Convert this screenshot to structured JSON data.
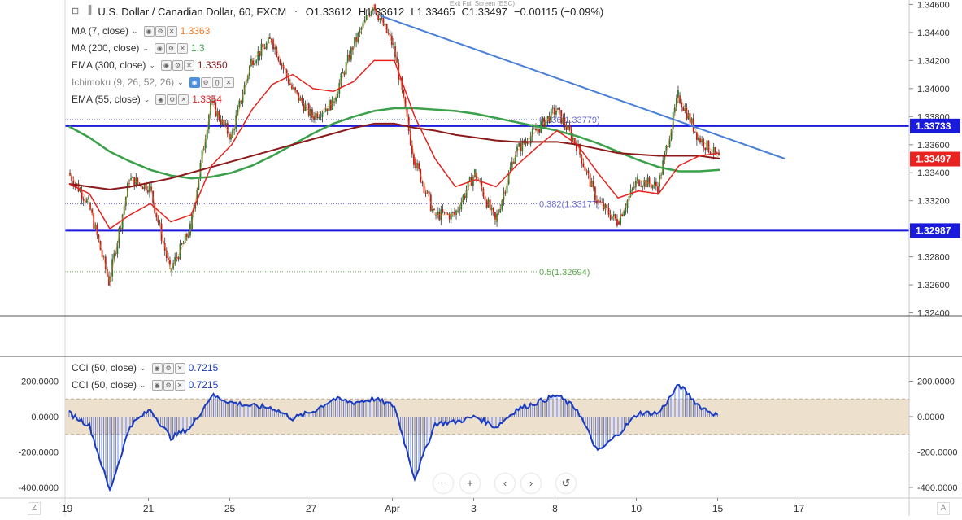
{
  "title": {
    "symbol": "U.S. Dollar / Canadian Dollar, 60, FXCM",
    "open": "O1.33612",
    "high": "H1.33612",
    "low": "L1.33465",
    "close": "C1.33497",
    "change": "−0.00115 (−0.09%)",
    "exit_fullscreen": "Exit Full Screen (ESC)"
  },
  "legends": [
    {
      "label": "MA (7, close)",
      "value": "1.3363",
      "color": "#f07b24"
    },
    {
      "label": "MA (200, close)",
      "value": "1.3",
      "color": "#3aa04a"
    },
    {
      "label": "EMA (300, close)",
      "value": "1.3350",
      "color": "#8b1a1a"
    },
    {
      "label": "Ichimoku (9, 26, 52, 26)",
      "value": "",
      "color": "#888888"
    },
    {
      "label": "EMA (55, close)",
      "value": "1.3354",
      "color": "#e8231f"
    }
  ],
  "cci_legends": [
    {
      "label": "CCI (50, close)",
      "value": "0.7215",
      "color": "#1a3cc0"
    },
    {
      "label": "CCI (50, close)",
      "value": "0.7215",
      "color": "#1a3cc0"
    }
  ],
  "price_axis": {
    "ticks": [
      "1.34600",
      "1.34400",
      "1.34200",
      "1.34000",
      "1.33800",
      "1.33600",
      "1.33400",
      "1.33200",
      "1.33000",
      "1.32800",
      "1.32600",
      "1.32400"
    ],
    "ymin": 1.3238,
    "ymax": 1.3462,
    "badges": [
      {
        "text": "1.33733",
        "value": 1.33733,
        "bg": "#1a1adb"
      },
      {
        "text": "1.33497",
        "value": 1.33497,
        "bg": "#e8231f"
      },
      {
        "text": "1.32987",
        "value": 1.32987,
        "bg": "#1a1adb"
      }
    ]
  },
  "fib": [
    {
      "text": "0.236(1.33779)",
      "value": 1.33779,
      "color": "#6a6ad8"
    },
    {
      "text": "0.382(1.33177)",
      "value": 1.33177,
      "color": "#6a6ad8"
    },
    {
      "text": "0.5(1.32694)",
      "value": 1.32694,
      "color": "#5aa84a"
    }
  ],
  "cci_axis": {
    "ticks": [
      "200.0000",
      "0.0000",
      "-200.0000",
      "-400.0000"
    ],
    "tick_values": [
      200,
      0,
      -200,
      -400
    ],
    "ymin": -460,
    "ymax": 340,
    "band": [
      -100,
      100
    ]
  },
  "x_axis": {
    "labels": [
      "19",
      "21",
      "25",
      "27",
      "Apr",
      "3",
      "8",
      "10",
      "15",
      "17"
    ],
    "positions": [
      0,
      4,
      8,
      12,
      16,
      20,
      24,
      28,
      32,
      36
    ]
  },
  "controls": {
    "minus": "−",
    "plus": "+",
    "left": "‹",
    "right": "›",
    "reset": "↺",
    "corner_left": "Z",
    "corner_right": "A"
  },
  "chart_data": {
    "type": "line",
    "instrument": "U.S. Dollar / Canadian Dollar, 60, FXCM",
    "x": [
      0,
      1,
      2,
      3,
      4,
      5,
      6,
      7,
      8,
      9,
      10,
      11,
      12,
      13,
      14,
      15,
      16,
      17,
      18,
      19,
      20,
      21,
      22,
      23,
      24,
      25,
      26,
      27,
      28,
      29,
      30,
      31,
      32
    ],
    "series": [
      {
        "name": "Price",
        "values": [
          1.334,
          1.3318,
          1.3262,
          1.3335,
          1.333,
          1.327,
          1.33,
          1.339,
          1.3365,
          1.342,
          1.3435,
          1.34,
          1.338,
          1.339,
          1.343,
          1.346,
          1.343,
          1.335,
          1.331,
          1.331,
          1.334,
          1.3305,
          1.3355,
          1.337,
          1.3385,
          1.336,
          1.332,
          1.3305,
          1.3335,
          1.333,
          1.3395,
          1.3365,
          1.335
        ]
      },
      {
        "name": "MA (200, close)",
        "values": [
          1.3373,
          1.3365,
          1.3355,
          1.3348,
          1.3342,
          1.3338,
          1.3336,
          1.3337,
          1.334,
          1.3345,
          1.3352,
          1.336,
          1.3368,
          1.3375,
          1.338,
          1.3384,
          1.3386,
          1.3386,
          1.3385,
          1.3384,
          1.3382,
          1.3379,
          1.3376,
          1.3373,
          1.337,
          1.3366,
          1.3361,
          1.3355,
          1.3349,
          1.3344,
          1.3341,
          1.3341,
          1.3342
        ]
      },
      {
        "name": "EMA (300, close)",
        "values": [
          1.3332,
          1.333,
          1.3328,
          1.333,
          1.3333,
          1.3336,
          1.334,
          1.3344,
          1.3348,
          1.3352,
          1.3356,
          1.336,
          1.3364,
          1.3368,
          1.3372,
          1.3375,
          1.3375,
          1.3372,
          1.337,
          1.3367,
          1.3365,
          1.3363,
          1.3362,
          1.3362,
          1.3362,
          1.336,
          1.3357,
          1.3354,
          1.3353,
          1.3352,
          1.3352,
          1.3352,
          1.335
        ]
      },
      {
        "name": "EMA (55, close)",
        "values": [
          1.3332,
          1.3325,
          1.33,
          1.331,
          1.3318,
          1.3305,
          1.331,
          1.3345,
          1.336,
          1.3385,
          1.3403,
          1.341,
          1.34,
          1.3398,
          1.3405,
          1.342,
          1.342,
          1.338,
          1.335,
          1.333,
          1.3335,
          1.333,
          1.3345,
          1.3358,
          1.337,
          1.336,
          1.334,
          1.3322,
          1.3327,
          1.3325,
          1.3345,
          1.3352,
          1.3354
        ]
      }
    ],
    "trendline": {
      "from": [
        15.3,
        1.3452
      ],
      "to": [
        35.2,
        1.335
      ]
    },
    "horizontal_levels": [
      1.33733,
      1.32987
    ],
    "ylim": [
      1.3238,
      1.3462
    ],
    "cci": {
      "name": "CCI (50, close)",
      "values": [
        20,
        -50,
        -420,
        -50,
        40,
        -120,
        -60,
        120,
        80,
        60,
        50,
        -10,
        30,
        100,
        80,
        100,
        60,
        -350,
        -40,
        -30,
        0,
        -60,
        40,
        80,
        120,
        40,
        -200,
        -100,
        20,
        20,
        180,
        60,
        0
      ],
      "ylim": [
        -460,
        340
      ],
      "band": [
        -100,
        100
      ]
    }
  }
}
